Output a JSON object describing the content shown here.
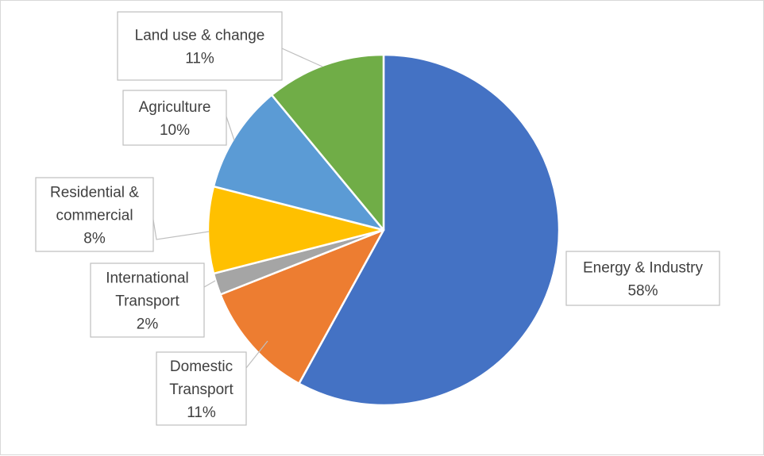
{
  "chart_data": {
    "type": "pie",
    "title": "",
    "slices": [
      {
        "label_lines": [
          "Energy & Industry"
        ],
        "pct_label": "58%",
        "value": 58,
        "color": "#4472C4"
      },
      {
        "label_lines": [
          "Domestic",
          "Transport"
        ],
        "pct_label": "11%",
        "value": 11,
        "color": "#ED7D31"
      },
      {
        "label_lines": [
          "International",
          "Transport"
        ],
        "pct_label": "2%",
        "value": 2,
        "color": "#A5A5A5"
      },
      {
        "label_lines": [
          "Residential &",
          "commercial"
        ],
        "pct_label": "8%",
        "value": 8,
        "color": "#FFC000"
      },
      {
        "label_lines": [
          "Agriculture"
        ],
        "pct_label": "10%",
        "value": 10,
        "color": "#5B9BD5"
      },
      {
        "label_lines": [
          "Land use & change"
        ],
        "pct_label": "11%",
        "value": 11,
        "color": "#70AD47"
      }
    ],
    "start_angle_deg": 0,
    "direction": "clockwise",
    "legend": "none",
    "data_labels": "callouts"
  }
}
